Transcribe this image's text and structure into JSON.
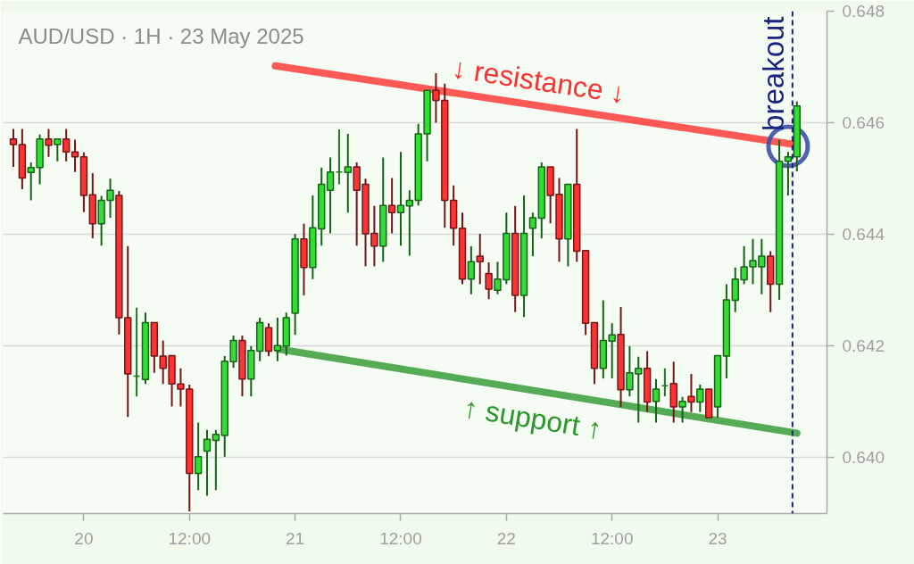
{
  "chart_data": {
    "type": "candlestick",
    "title": "AUD/USD · 1H · 23 May 2025",
    "x": [
      "2025-05-19T16:00",
      "2025-05-19T17:00",
      "2025-05-19T18:00",
      "2025-05-19T19:00",
      "2025-05-19T20:00",
      "2025-05-19T21:00",
      "2025-05-19T22:00",
      "2025-05-19T23:00",
      "2025-05-20T00:00",
      "2025-05-20T01:00",
      "2025-05-20T02:00",
      "2025-05-20T03:00",
      "2025-05-20T04:00",
      "2025-05-20T05:00",
      "2025-05-20T06:00",
      "2025-05-20T07:00",
      "2025-05-20T08:00",
      "2025-05-20T09:00",
      "2025-05-20T10:00",
      "2025-05-20T11:00",
      "2025-05-20T12:00",
      "2025-05-20T13:00",
      "2025-05-20T14:00",
      "2025-05-20T15:00",
      "2025-05-20T16:00",
      "2025-05-20T17:00",
      "2025-05-20T18:00",
      "2025-05-20T19:00",
      "2025-05-20T20:00",
      "2025-05-20T21:00",
      "2025-05-20T22:00",
      "2025-05-20T23:00",
      "2025-05-21T00:00",
      "2025-05-21T01:00",
      "2025-05-21T02:00",
      "2025-05-21T03:00",
      "2025-05-21T04:00",
      "2025-05-21T05:00",
      "2025-05-21T06:00",
      "2025-05-21T07:00",
      "2025-05-21T08:00",
      "2025-05-21T09:00",
      "2025-05-21T10:00",
      "2025-05-21T11:00",
      "2025-05-21T12:00",
      "2025-05-21T13:00",
      "2025-05-21T14:00",
      "2025-05-21T15:00",
      "2025-05-21T16:00",
      "2025-05-21T17:00",
      "2025-05-21T18:00",
      "2025-05-21T19:00",
      "2025-05-21T20:00",
      "2025-05-21T21:00",
      "2025-05-21T22:00",
      "2025-05-21T23:00",
      "2025-05-22T00:00",
      "2025-05-22T01:00",
      "2025-05-22T02:00",
      "2025-05-22T03:00",
      "2025-05-22T04:00",
      "2025-05-22T05:00",
      "2025-05-22T06:00",
      "2025-05-22T07:00",
      "2025-05-22T08:00",
      "2025-05-22T09:00",
      "2025-05-22T10:00",
      "2025-05-22T11:00",
      "2025-05-22T12:00",
      "2025-05-22T13:00",
      "2025-05-22T14:00",
      "2025-05-22T15:00",
      "2025-05-22T16:00",
      "2025-05-22T17:00",
      "2025-05-22T18:00",
      "2025-05-22T19:00",
      "2025-05-22T20:00",
      "2025-05-22T21:00",
      "2025-05-22T22:00",
      "2025-05-22T23:00",
      "2025-05-23T00:00",
      "2025-05-23T01:00",
      "2025-05-23T02:00",
      "2025-05-23T03:00",
      "2025-05-23T04:00",
      "2025-05-23T05:00",
      "2025-05-23T06:00",
      "2025-05-23T07:00",
      "2025-05-23T08:00",
      "2025-05-23T09:00"
    ],
    "ohlc": [
      [
        0.64571,
        0.64589,
        0.64521,
        0.64561
      ],
      [
        0.64561,
        0.64589,
        0.64481,
        0.64501
      ],
      [
        0.64511,
        0.64529,
        0.64461,
        0.6452
      ],
      [
        0.6452,
        0.64579,
        0.6449,
        0.64571
      ],
      [
        0.64571,
        0.64589,
        0.64539,
        0.6456
      ],
      [
        0.64561,
        0.64571,
        0.64531,
        0.64571
      ],
      [
        0.64571,
        0.64589,
        0.64531,
        0.64548
      ],
      [
        0.64548,
        0.6457,
        0.64512,
        0.64539
      ],
      [
        0.64539,
        0.64547,
        0.6444,
        0.6447
      ],
      [
        0.64471,
        0.6451,
        0.64393,
        0.64419
      ],
      [
        0.64419,
        0.64469,
        0.6438,
        0.64461
      ],
      [
        0.64461,
        0.645,
        0.6443,
        0.64479
      ],
      [
        0.6447,
        0.64478,
        0.64221,
        0.64251
      ],
      [
        0.64251,
        0.64379,
        0.64073,
        0.6415
      ],
      [
        0.64146,
        0.64269,
        0.6411,
        0.64146
      ],
      [
        0.6414,
        0.6426,
        0.64132,
        0.64242
      ],
      [
        0.64242,
        0.64242,
        0.64152,
        0.64182
      ],
      [
        0.64182,
        0.6421,
        0.64132,
        0.6416
      ],
      [
        0.64183,
        0.64183,
        0.64092,
        0.64132
      ],
      [
        0.64132,
        0.6416,
        0.64092,
        0.64123
      ],
      [
        0.64123,
        0.64131,
        0.63904,
        0.63972
      ],
      [
        0.63972,
        0.64063,
        0.63942,
        0.64002
      ],
      [
        0.64012,
        0.6405,
        0.63932,
        0.64033
      ],
      [
        0.64031,
        0.6405,
        0.63942,
        0.64042
      ],
      [
        0.6404,
        0.64182,
        0.64002,
        0.64173
      ],
      [
        0.64172,
        0.64219,
        0.64161,
        0.6421
      ],
      [
        0.6421,
        0.64219,
        0.6411,
        0.64141
      ],
      [
        0.64141,
        0.642,
        0.6411,
        0.64192
      ],
      [
        0.64191,
        0.64251,
        0.64173,
        0.64242
      ],
      [
        0.64233,
        0.64241,
        0.64182,
        0.64191
      ],
      [
        0.64192,
        0.64251,
        0.64173,
        0.64201
      ],
      [
        0.642,
        0.6426,
        0.64183,
        0.64251
      ],
      [
        0.64259,
        0.64401,
        0.6422,
        0.64392
      ],
      [
        0.64392,
        0.64419,
        0.64291,
        0.64341
      ],
      [
        0.64341,
        0.6447,
        0.6432,
        0.64412
      ],
      [
        0.6441,
        0.6452,
        0.6438,
        0.6449
      ],
      [
        0.64479,
        0.64538,
        0.64402,
        0.64512
      ],
      [
        0.64512,
        0.64588,
        0.6449,
        0.64512
      ],
      [
        0.64511,
        0.6458,
        0.64439,
        0.64521
      ],
      [
        0.64521,
        0.64529,
        0.6438,
        0.64479
      ],
      [
        0.6449,
        0.645,
        0.64343,
        0.64401
      ],
      [
        0.64402,
        0.64451,
        0.64343,
        0.64379
      ],
      [
        0.64379,
        0.64538,
        0.64351,
        0.64452
      ],
      [
        0.64452,
        0.64501,
        0.64402,
        0.64439
      ],
      [
        0.64439,
        0.64548,
        0.6438,
        0.64452
      ],
      [
        0.64451,
        0.64479,
        0.64362,
        0.64461
      ],
      [
        0.64461,
        0.64598,
        0.64452,
        0.6458
      ],
      [
        0.6458,
        0.64658,
        0.64531,
        0.64658
      ],
      [
        0.64658,
        0.64689,
        0.646,
        0.6464
      ],
      [
        0.6464,
        0.6467,
        0.64412,
        0.64461
      ],
      [
        0.64461,
        0.64488,
        0.6438,
        0.64411
      ],
      [
        0.64411,
        0.64439,
        0.64311,
        0.6432
      ],
      [
        0.6432,
        0.64379,
        0.64293,
        0.64351
      ],
      [
        0.64361,
        0.64401,
        0.64311,
        0.64351
      ],
      [
        0.6433,
        0.6435,
        0.64284,
        0.64302
      ],
      [
        0.643,
        0.64351,
        0.64293,
        0.6432
      ],
      [
        0.64319,
        0.64439,
        0.64311,
        0.64402
      ],
      [
        0.64402,
        0.64451,
        0.64261,
        0.64291
      ],
      [
        0.64291,
        0.6447,
        0.64252,
        0.64402
      ],
      [
        0.64411,
        0.64439,
        0.64361,
        0.6443
      ],
      [
        0.64429,
        0.64529,
        0.64393,
        0.64521
      ],
      [
        0.64521,
        0.64521,
        0.6442,
        0.6447
      ],
      [
        0.64472,
        0.64501,
        0.64351,
        0.64392
      ],
      [
        0.64392,
        0.6449,
        0.64343,
        0.6449
      ],
      [
        0.6449,
        0.64589,
        0.64351,
        0.6437
      ],
      [
        0.64371,
        0.64371,
        0.6422,
        0.64241
      ],
      [
        0.64242,
        0.64242,
        0.64132,
        0.6416
      ],
      [
        0.6416,
        0.64282,
        0.64142,
        0.6421
      ],
      [
        0.64209,
        0.64241,
        0.64142,
        0.6422
      ],
      [
        0.64221,
        0.6427,
        0.64091,
        0.64122
      ],
      [
        0.64122,
        0.642,
        0.6411,
        0.64152
      ],
      [
        0.6415,
        0.64181,
        0.64063,
        0.6416
      ],
      [
        0.6416,
        0.64191,
        0.64082,
        0.641
      ],
      [
        0.64101,
        0.64141,
        0.64063,
        0.64123
      ],
      [
        0.64129,
        0.6416,
        0.6411,
        0.64129
      ],
      [
        0.64133,
        0.64172,
        0.64063,
        0.64091
      ],
      [
        0.64091,
        0.64109,
        0.64063,
        0.64101
      ],
      [
        0.6411,
        0.6415,
        0.64082,
        0.641
      ],
      [
        0.641,
        0.64131,
        0.64082,
        0.64123
      ],
      [
        0.64123,
        0.64123,
        0.64072,
        0.64072
      ],
      [
        0.64091,
        0.64183,
        0.64072,
        0.64183
      ],
      [
        0.64182,
        0.64311,
        0.64142,
        0.64283
      ],
      [
        0.64282,
        0.64341,
        0.64261,
        0.6432
      ],
      [
        0.64319,
        0.64379,
        0.64311,
        0.64342
      ],
      [
        0.64342,
        0.64392,
        0.64311,
        0.64353
      ],
      [
        0.64342,
        0.64392,
        0.64293,
        0.64361
      ],
      [
        0.64361,
        0.6437,
        0.64261,
        0.64311
      ],
      [
        0.64311,
        0.64569,
        0.64283,
        0.64531
      ],
      [
        0.64531,
        0.64548,
        0.6447,
        0.64539
      ],
      [
        0.64539,
        0.64638,
        0.64513,
        0.6463
      ]
    ],
    "colors": [
      "#ff3333",
      "#ff3333",
      "#33dd33",
      "#33dd33",
      "#ff3333",
      "#33dd33",
      "#ff3333",
      "#ff3333",
      "#ff3333",
      "#ff3333",
      "#33dd33",
      "#33dd33",
      "#ff3333",
      "#ff3333",
      "#1c7a1c",
      "#33dd33",
      "#ff3333",
      "#ff3333",
      "#ff3333",
      "#ff3333",
      "#ff3333",
      "#33dd33",
      "#33dd33",
      "#33dd33",
      "#33dd33",
      "#33dd33",
      "#ff3333",
      "#33dd33",
      "#33dd33",
      "#ff3333",
      "#33dd33",
      "#33dd33",
      "#33dd33",
      "#ff3333",
      "#33dd33",
      "#33dd33",
      "#33dd33",
      "#1c7a1c",
      "#33dd33",
      "#ff3333",
      "#ff3333",
      "#ff3333",
      "#33dd33",
      "#ff3333",
      "#33dd33",
      "#33dd33",
      "#33dd33",
      "#33dd33",
      "#ff3333",
      "#ff3333",
      "#ff3333",
      "#ff3333",
      "#33dd33",
      "#ff3333",
      "#ff3333",
      "#33dd33",
      "#33dd33",
      "#ff3333",
      "#33dd33",
      "#33dd33",
      "#33dd33",
      "#ff3333",
      "#ff3333",
      "#33dd33",
      "#ff3333",
      "#ff3333",
      "#ff3333",
      "#33dd33",
      "#33dd33",
      "#ff3333",
      "#33dd33",
      "#33dd33",
      "#ff3333",
      "#33dd33",
      "#1c7a1c",
      "#ff3333",
      "#33dd33",
      "#ff3333",
      "#33dd33",
      "#ff3333",
      "#33dd33",
      "#33dd33",
      "#33dd33",
      "#33dd33",
      "#33dd33",
      "#33dd33",
      "#ff3333",
      "#33dd33",
      "#33dd33",
      "#33dd33"
    ],
    "series": [
      {
        "type": "line",
        "name": "↓ resistance ↓",
        "color": "#ff3030",
        "x": [
          "2025-05-20T21:45",
          "2025-05-23T08:45"
        ],
        "values": [
          0.64702,
          0.64561
        ]
      },
      {
        "type": "line",
        "name": "↑ support ↑",
        "color": "#2e962e",
        "x": [
          "2025-05-20T22:00",
          "2025-05-23T09:00"
        ],
        "values": [
          0.64195,
          0.64044
        ]
      },
      {
        "type": "scatter",
        "color": "#3f4fa8",
        "marker": "circle",
        "x": [
          "2025-05-23T08:00"
        ],
        "values": [
          0.64558
        ]
      }
    ],
    "ref_lines": [
      {
        "axis": "x",
        "value": "2025-05-23T08:30",
        "label": "breakout",
        "color": "#1a237e",
        "line_style": "dashed"
      }
    ],
    "xlim": [
      "2025-05-19T14:50",
      "2025-05-23T12:25"
    ],
    "xticks": [
      {
        "value": "2025-05-20",
        "label": "20"
      },
      {
        "value": "2025-05-20T12:00",
        "label": "12:00"
      },
      {
        "value": "2025-05-21",
        "label": "21"
      },
      {
        "value": "2025-05-21T12:00",
        "label": "12:00"
      },
      {
        "value": "2025-05-22",
        "label": "22"
      },
      {
        "value": "2025-05-22T12:00",
        "label": "12:00"
      },
      {
        "value": "2025-05-23",
        "label": "23"
      }
    ],
    "ylim": [
      0.639,
      0.648
    ],
    "yticks": [
      {
        "value": 0.64,
        "label": "0.640"
      },
      {
        "value": 0.642,
        "label": "0.642"
      },
      {
        "value": 0.644,
        "label": "0.644"
      },
      {
        "value": 0.646,
        "label": "0.646"
      },
      {
        "value": 0.648,
        "label": "0.648"
      }
    ],
    "grid": "y"
  }
}
